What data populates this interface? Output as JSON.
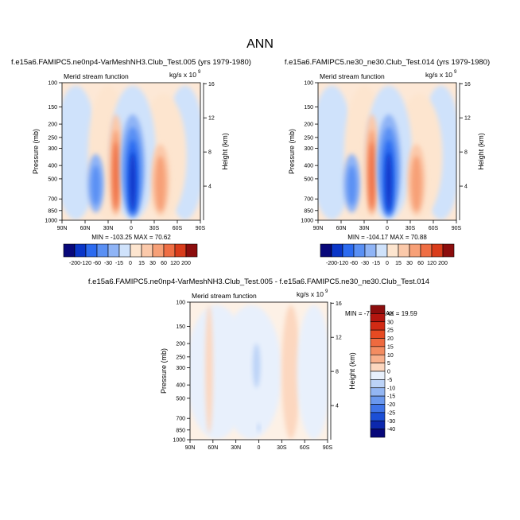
{
  "title": "ANN",
  "chart_data": [
    {
      "type": "heatmap",
      "title": "f.e15a6.FAMIPC5.ne0np4-VarMeshNH3.Club_Test.005 (yrs 1979-1980)",
      "left_label": "Merid stream function",
      "units_label": "kg/s x 10",
      "units_exponent": "9",
      "ylabel": "Pressure (mb)",
      "ylabel_right": "Height (km)",
      "x_ticks": [
        "90N",
        "60N",
        "30N",
        "0",
        "30S",
        "60S",
        "90S"
      ],
      "y_ticks": [
        "100",
        "150",
        "200",
        "250",
        "300",
        "400",
        "500",
        "700",
        "850",
        "1000"
      ],
      "height_ticks": [
        "16",
        "12",
        "8",
        "4"
      ],
      "min": "-103.25",
      "max": "70.62",
      "stats_text": "MIN = -103.25   MAX = 70.62",
      "contour_levels": [
        -200,
        -120,
        -60,
        -30,
        -15,
        0,
        15,
        30,
        60,
        120,
        200
      ],
      "colorbar_labels": [
        "-200",
        "-120",
        "-60",
        "-30",
        "-15",
        "0",
        "15",
        "30",
        "60",
        "120",
        "200"
      ],
      "colors": [
        "#08087a",
        "#0a36c8",
        "#2c6bf0",
        "#5a90f4",
        "#8fb4f6",
        "#cfe2fb",
        "#fde5cf",
        "#fbc9aa",
        "#f7a077",
        "#ef6e44",
        "#d93c1b",
        "#8c0d0d"
      ],
      "cells": [
        {
          "lat": 45,
          "p": 550,
          "value": -30
        },
        {
          "lat": 20,
          "p": 500,
          "value": 50
        },
        {
          "lat": 0,
          "p": 550,
          "value": -103.25
        },
        {
          "lat": -35,
          "p": 600,
          "value": 35
        }
      ]
    },
    {
      "type": "heatmap",
      "title": "f.e15a6.FAMIPC5.ne30_ne30.Club_Test.014 (yrs 1979-1980)",
      "left_label": "Merid stream function",
      "units_label": "kg/s x 10",
      "units_exponent": "9",
      "ylabel": "Pressure (mb)",
      "ylabel_right": "Height (km)",
      "x_ticks": [
        "90N",
        "60N",
        "30N",
        "0",
        "30S",
        "60S",
        "90S"
      ],
      "y_ticks": [
        "100",
        "150",
        "200",
        "250",
        "300",
        "400",
        "500",
        "700",
        "850",
        "1000"
      ],
      "height_ticks": [
        "16",
        "12",
        "8",
        "4"
      ],
      "min": "-104.17",
      "max": "70.88",
      "stats_text": "MIN = -104.17   MAX = 70.88",
      "contour_levels": [
        -200,
        -120,
        -60,
        -30,
        -15,
        0,
        15,
        30,
        60,
        120,
        200
      ],
      "colorbar_labels": [
        "-200",
        "-120",
        "-60",
        "-30",
        "-15",
        "0",
        "15",
        "30",
        "60",
        "120",
        "200"
      ],
      "colors": [
        "#08087a",
        "#0a36c8",
        "#2c6bf0",
        "#5a90f4",
        "#8fb4f6",
        "#cfe2fb",
        "#fde5cf",
        "#fbc9aa",
        "#f7a077",
        "#ef6e44",
        "#d93c1b",
        "#8c0d0d"
      ],
      "cells": [
        {
          "lat": 45,
          "p": 550,
          "value": -30
        },
        {
          "lat": 20,
          "p": 500,
          "value": 50
        },
        {
          "lat": 0,
          "p": 550,
          "value": -104.17
        },
        {
          "lat": -35,
          "p": 600,
          "value": 35
        }
      ]
    },
    {
      "type": "heatmap",
      "title": "f.e15a6.FAMIPC5.ne0np4-VarMeshNH3.Club_Test.005 - f.e15a6.FAMIPC5.ne30_ne30.Club_Test.014",
      "left_label": "Merid stream function",
      "units_label": "kg/s x 10",
      "units_exponent": "9",
      "ylabel": "Pressure (mb)",
      "ylabel_right": "Height (km)",
      "x_ticks": [
        "90N",
        "60N",
        "30N",
        "0",
        "30S",
        "60S",
        "90S"
      ],
      "y_ticks": [
        "100",
        "150",
        "200",
        "250",
        "300",
        "400",
        "500",
        "700",
        "850",
        "1000"
      ],
      "height_ticks": [
        "16",
        "12",
        "8",
        "4"
      ],
      "min": "-7.22",
      "max": "19.59",
      "stats_text": "MIN = -7.22   MAX = 19.59",
      "contour_levels": [
        -40,
        -30,
        -25,
        -20,
        -15,
        -10,
        -5,
        0,
        5,
        10,
        15,
        20,
        25,
        30,
        40
      ],
      "colorbar_labels": [
        "40",
        "30",
        "25",
        "20",
        "15",
        "10",
        "5",
        "0",
        "-5",
        "-10",
        "-15",
        "-20",
        "-25",
        "-30",
        "-40"
      ],
      "colors": [
        "#8c0d0d",
        "#b3150f",
        "#d22a14",
        "#e64a22",
        "#ee6a3f",
        "#f38c61",
        "#f8b08c",
        "#fcd7bf",
        "#e8f0fc",
        "#bcd3f7",
        "#93b6f3",
        "#6a98ee",
        "#3f74e8",
        "#1c4fd6",
        "#0c28ad",
        "#08087a"
      ],
      "cells": [
        {
          "lat": 3,
          "p": 280,
          "value": 7
        },
        {
          "lat": 0,
          "p": 820,
          "value": 6
        },
        {
          "lat": -25,
          "p": 500,
          "value": -3
        }
      ]
    }
  ]
}
